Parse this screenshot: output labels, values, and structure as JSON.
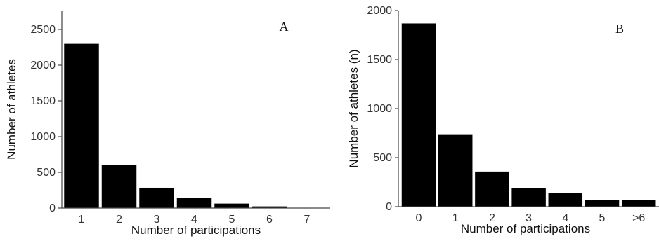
{
  "chart_data": [
    {
      "type": "bar",
      "panel_label": "A",
      "xlabel": "Number of participations",
      "ylabel": "Number of athletes",
      "categories": [
        "1",
        "2",
        "3",
        "4",
        "5",
        "6",
        "7"
      ],
      "values": [
        2300,
        610,
        285,
        140,
        65,
        25,
        5
      ],
      "ylim": [
        0,
        2500
      ],
      "yticks": [
        "0",
        "500",
        "1000",
        "1500",
        "2000",
        "2500"
      ],
      "bar_color": "#000000",
      "grid": false
    },
    {
      "type": "bar",
      "panel_label": "B",
      "xlabel": "Number of participations",
      "ylabel": "Number of athletes (n)",
      "categories": [
        "0",
        "1",
        "2",
        "3",
        "4",
        "5",
        ">6"
      ],
      "values": [
        1870,
        740,
        360,
        190,
        140,
        70,
        70
      ],
      "ylim": [
        0,
        2000
      ],
      "yticks": [
        "0",
        "500",
        "1000",
        "1500",
        "2000"
      ],
      "bar_color": "#000000",
      "grid": false
    }
  ]
}
